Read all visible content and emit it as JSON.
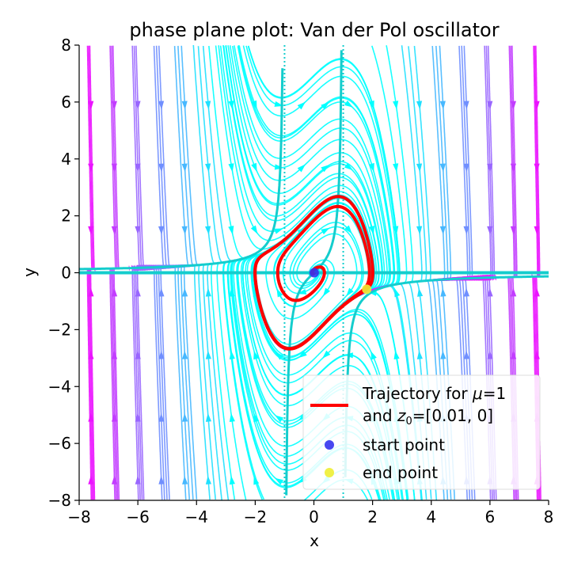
{
  "chart_data": {
    "type": "line",
    "title": "phase plane plot: Van der Pol oscillator",
    "xlabel": "x",
    "ylabel": "y",
    "xlim": [
      -8,
      8
    ],
    "ylim": [
      -8,
      8
    ],
    "xticks": [
      -8,
      -6,
      -4,
      -2,
      0,
      2,
      4,
      6,
      8
    ],
    "yticks": [
      -8,
      -6,
      -4,
      -2,
      0,
      2,
      4,
      6,
      8
    ],
    "xtick_labels": [
      "−8",
      "−6",
      "−4",
      "−2",
      "0",
      "2",
      "4",
      "6",
      "8"
    ],
    "ytick_labels": [
      "−8",
      "−6",
      "−4",
      "−2",
      "0",
      "2",
      "4",
      "6",
      "8"
    ],
    "grid": false,
    "mu": 1,
    "z0": [
      0.01,
      0
    ],
    "start_point": [
      0.01,
      0
    ],
    "end_point": [
      1.8,
      -0.58
    ],
    "nullclines": {
      "horizontal_line_y": 0,
      "vertical_asymptotes_x": [
        -1,
        1
      ]
    },
    "colors": {
      "trajectory": "#ff0000",
      "nullcline": "#14cdcd",
      "start": "#3333ee",
      "end": "#eeee33",
      "stream_low": "#00ffff",
      "stream_high": "#ff00ff"
    },
    "legend": {
      "placement": "lower-right",
      "entries": [
        {
          "name": "trajectory",
          "line1_pre": "Trajectory for ",
          "line1_mu": "μ",
          "line1_post": "=1",
          "line2_pre": "and ",
          "line2_z": "z",
          "line2_sub": "0",
          "line2_post": "=[0.01, 0]"
        },
        {
          "name": "start",
          "label": "start point"
        },
        {
          "name": "end",
          "label": "end point"
        }
      ]
    }
  }
}
